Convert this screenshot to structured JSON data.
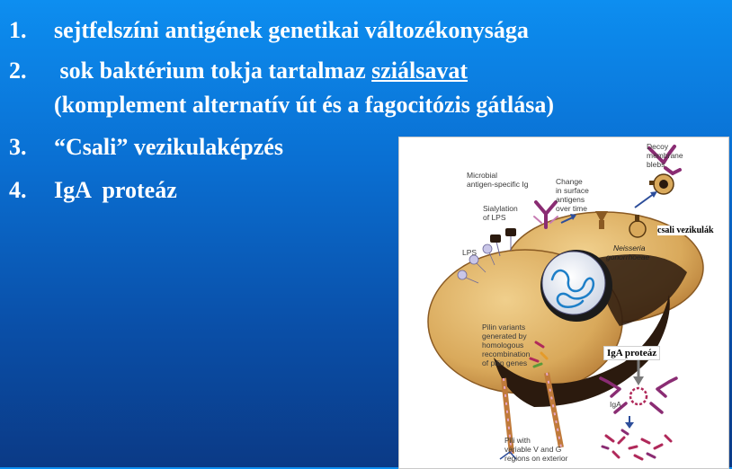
{
  "list": {
    "items": [
      {
        "num": "1.",
        "text": "sejtfelszíni antigének genetikai változékonysága"
      },
      {
        "num": "2.",
        "text_pre": " sok baktérium tokja tartalmaz ",
        "text_link": "sziálsavat",
        "text_line2": "(komplement alternatív út és a fagocitózis gátlása)"
      },
      {
        "num": "3.",
        "text": "“Csali” vezikulaképzés"
      },
      {
        "num": "4.",
        "text": "IgA  proteáz"
      }
    ]
  },
  "figure": {
    "labels": {
      "microbial": "Microbial",
      "antigen_specific": "antigen-specific Ig",
      "change": "Change",
      "in_surface": "in surface",
      "antigens": "antigens",
      "over_time": "over time",
      "decoy": "Decoy",
      "membrane": "membrane",
      "blebs": "blebs",
      "sialylation": "Sialylation",
      "of_lps": "of LPS",
      "lps": "LPS",
      "neisseria": "Neisseria",
      "gonorrhoeae": "gonorrhoeae",
      "pilin_variants": "Pilin variants",
      "generated_by": "generated by",
      "homologous": "homologous",
      "recombination": "recombination",
      "of_pilin_genes": "of pilin genes",
      "iga": "IgA",
      "pili_with": "Pili with",
      "variable_v": "variable V and G",
      "regions_on": "regions on exterior"
    },
    "callouts": {
      "csali": "csali vezikulák",
      "iga_protease": "IgA proteáz"
    }
  },
  "colors": {
    "bg_top": "#0d8ef0",
    "bg_bottom": "#0b3a86",
    "cell": "#d9a95b",
    "cell_dark": "#2b1a0e",
    "nucleoid": "#1e7fc8",
    "antibody": "#8a2c73"
  }
}
